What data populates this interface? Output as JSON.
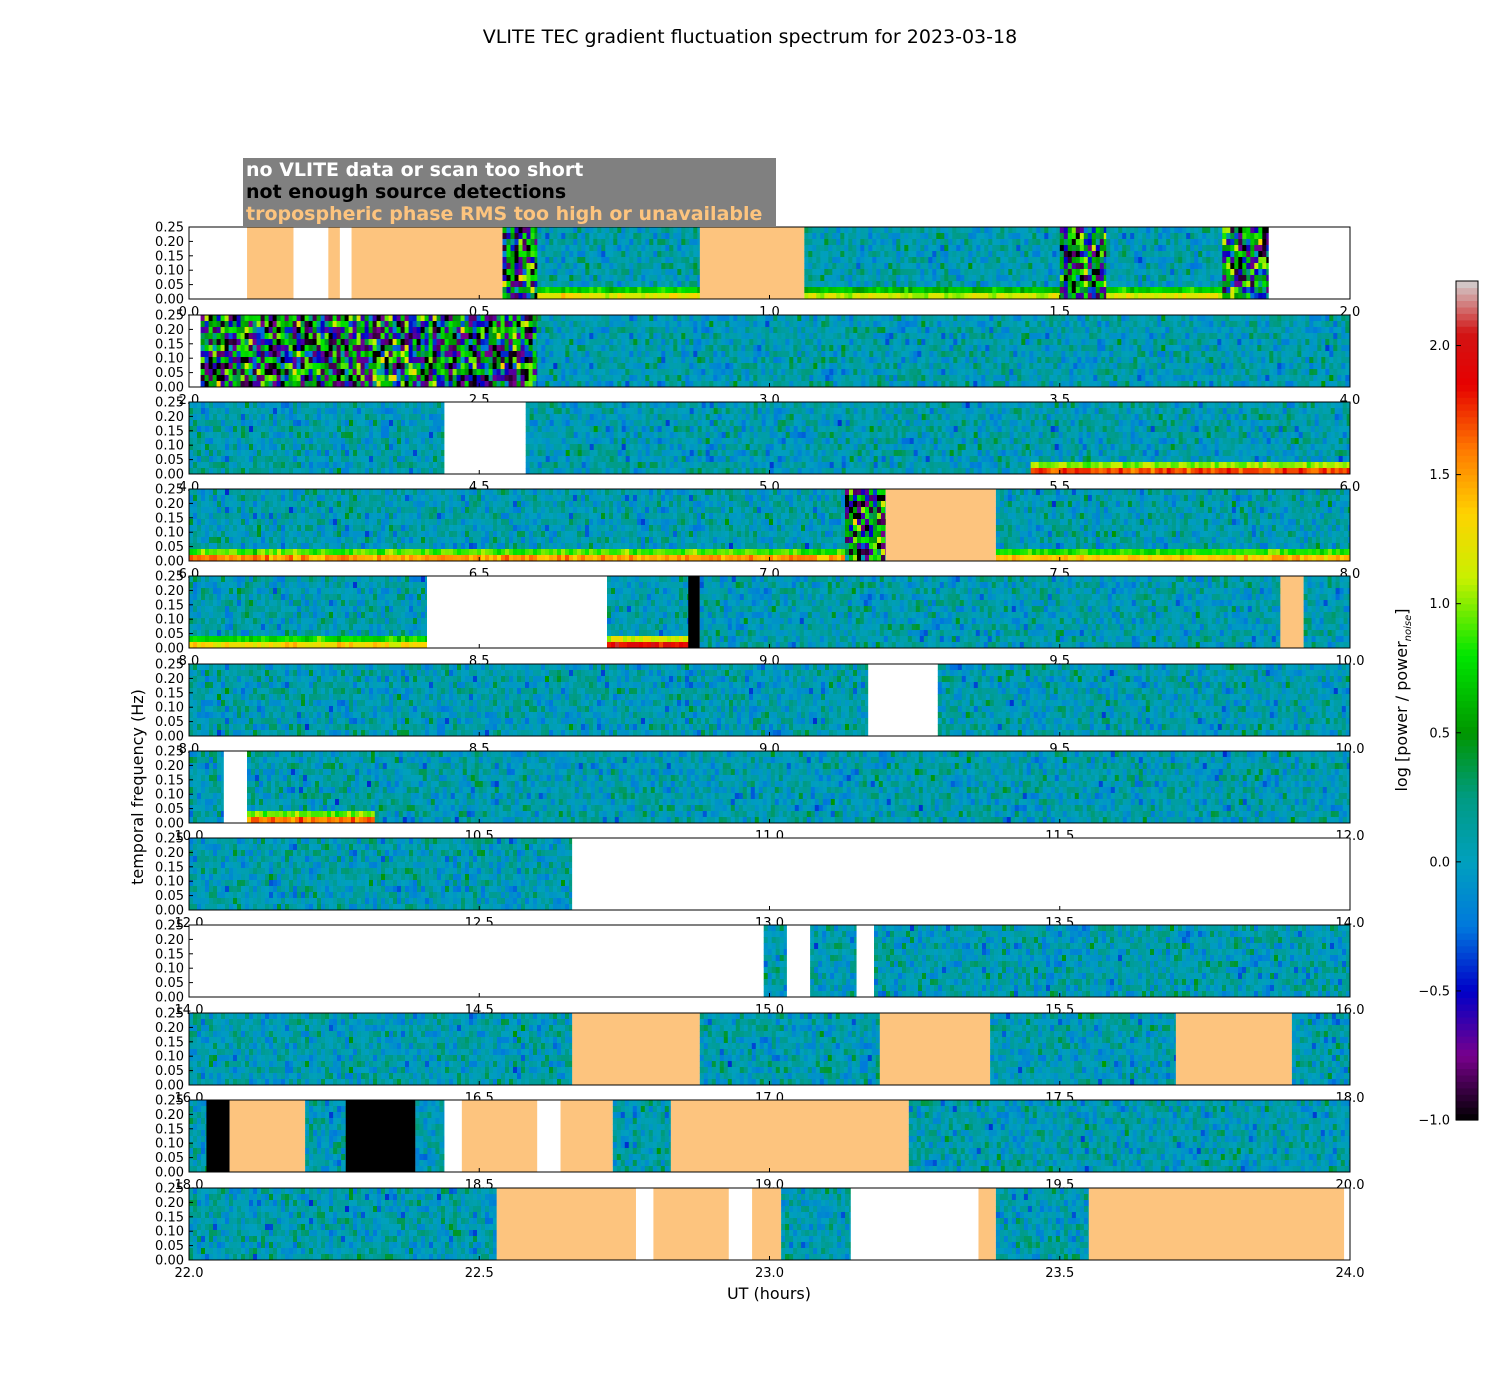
{
  "title": "VLITE TEC gradient fluctuation spectrum for 2023-03-18",
  "legend_box": {
    "lines": [
      {
        "text": "no VLITE data or scan too short",
        "color": "#ffffff"
      },
      {
        "text": "not enough source detections",
        "color": "#000000"
      },
      {
        "text": "tropospheric phase RMS too high or unavailable",
        "color": "#fdc47e"
      }
    ],
    "background": "#808080"
  },
  "colors": {
    "no_data": "#ffffff",
    "too_few_detections": "#000000",
    "tropo_rms_high": "#fdc47e"
  },
  "chart_data": {
    "type": "heatmap",
    "title": "VLITE TEC gradient fluctuation spectrum for 2023-03-18",
    "xlabel": "UT (hours)",
    "ylabel": "temporal frequency (Hz)",
    "ylim": [
      0,
      0.25
    ],
    "yticks": [
      "0.00",
      "0.05",
      "0.10",
      "0.15",
      "0.20",
      "0.25"
    ],
    "colorbar": {
      "label": "log [power / power",
      "label_sub": "noise",
      "label_end": "]",
      "range": [
        -1.0,
        2.25
      ],
      "ticks": [
        "−1.0",
        "−0.5",
        "0.0",
        "0.5",
        "1.0",
        "1.5",
        "2.0"
      ],
      "tick_values": [
        -1.0,
        -0.5,
        0.0,
        0.5,
        1.0,
        1.5,
        2.0
      ],
      "colormap": "nipy_spectral"
    },
    "rows": [
      {
        "xlim": [
          0.0,
          2.0
        ],
        "xticks": [
          "0.0",
          "0.5",
          "1.0",
          "1.5",
          "2.0"
        ],
        "segments": [
          {
            "start": 0.0,
            "end": 0.1,
            "status": "no_data"
          },
          {
            "start": 0.1,
            "end": 0.18,
            "status": "tropo_rms_high"
          },
          {
            "start": 0.18,
            "end": 0.24,
            "status": "no_data"
          },
          {
            "start": 0.24,
            "end": 0.26,
            "status": "tropo_rms_high"
          },
          {
            "start": 0.26,
            "end": 0.28,
            "status": "no_data"
          },
          {
            "start": 0.28,
            "end": 0.54,
            "status": "tropo_rms_high"
          },
          {
            "start": 0.54,
            "end": 0.6,
            "status": "spectrum",
            "noisy": true
          },
          {
            "start": 0.6,
            "end": 0.88,
            "status": "spectrum",
            "low_freq_power": 1.2
          },
          {
            "start": 0.88,
            "end": 1.06,
            "status": "tropo_rms_high"
          },
          {
            "start": 1.06,
            "end": 1.5,
            "status": "spectrum",
            "low_freq_power": 1.1
          },
          {
            "start": 1.5,
            "end": 1.58,
            "status": "spectrum",
            "noisy": true
          },
          {
            "start": 1.58,
            "end": 1.78,
            "status": "spectrum",
            "low_freq_power": 1.2
          },
          {
            "start": 1.78,
            "end": 1.86,
            "status": "spectrum",
            "noisy": true
          },
          {
            "start": 1.86,
            "end": 1.95,
            "status": "no_data"
          },
          {
            "start": 1.95,
            "end": 2.0,
            "status": "no_data"
          }
        ]
      },
      {
        "xlim": [
          2.0,
          4.0
        ],
        "xticks": [
          "2.0",
          "2.5",
          "3.0",
          "3.5",
          "4.0"
        ],
        "segments": [
          {
            "start": 2.0,
            "end": 2.02,
            "status": "no_data"
          },
          {
            "start": 2.02,
            "end": 2.6,
            "status": "spectrum",
            "noisy": true
          },
          {
            "start": 2.6,
            "end": 4.0,
            "status": "spectrum"
          }
        ]
      },
      {
        "xlim": [
          4.0,
          6.0
        ],
        "xticks": [
          "4.0",
          "4.5",
          "5.0",
          "5.5",
          "6.0"
        ],
        "segments": [
          {
            "start": 4.0,
            "end": 4.44,
            "status": "spectrum"
          },
          {
            "start": 4.44,
            "end": 4.58,
            "status": "no_data"
          },
          {
            "start": 4.58,
            "end": 5.45,
            "status": "spectrum"
          },
          {
            "start": 5.45,
            "end": 6.0,
            "status": "spectrum",
            "low_freq_power": 1.7
          }
        ]
      },
      {
        "xlim": [
          6.0,
          8.0
        ],
        "xticks": [
          "6.0",
          "6.5",
          "7.0",
          "7.5",
          "8.0"
        ],
        "segments": [
          {
            "start": 6.0,
            "end": 7.13,
            "status": "spectrum",
            "low_freq_power": 1.5
          },
          {
            "start": 7.13,
            "end": 7.2,
            "status": "spectrum",
            "noisy": true
          },
          {
            "start": 7.2,
            "end": 7.39,
            "status": "tropo_rms_high"
          },
          {
            "start": 7.39,
            "end": 8.0,
            "status": "spectrum",
            "low_freq_power": 1.4
          }
        ]
      },
      {
        "xlim": [
          8.0,
          10.0
        ],
        "xticks": [
          "8.0",
          "8.5",
          "9.0",
          "9.5",
          "10.0"
        ],
        "segments": [
          {
            "start": 8.0,
            "end": 8.41,
            "status": "spectrum",
            "low_freq_power": 1.3
          },
          {
            "start": 8.41,
            "end": 8.72,
            "status": "no_data"
          },
          {
            "start": 8.72,
            "end": 8.86,
            "status": "spectrum",
            "low_freq_power": 1.9
          },
          {
            "start": 8.86,
            "end": 8.88,
            "status": "too_few_detections"
          },
          {
            "start": 8.88,
            "end": 9.88,
            "status": "spectrum"
          },
          {
            "start": 9.88,
            "end": 9.92,
            "status": "tropo_rms_high"
          },
          {
            "start": 9.92,
            "end": 10.0,
            "status": "spectrum"
          }
        ]
      },
      {
        "xlim": [
          8.0,
          10.0
        ],
        "xticks": [
          "8.0",
          "8.5",
          "9.0",
          "9.5",
          "10.0"
        ],
        "segments": [
          {
            "start": 8.0,
            "end": 9.17,
            "status": "spectrum"
          },
          {
            "start": 9.17,
            "end": 9.29,
            "status": "no_data"
          },
          {
            "start": 9.29,
            "end": 10.0,
            "status": "spectrum"
          }
        ]
      },
      {
        "xlim": [
          10.0,
          12.0
        ],
        "xticks": [
          "10.0",
          "10.5",
          "11.0",
          "11.5",
          "12.0"
        ],
        "segments": [
          {
            "start": 10.0,
            "end": 10.06,
            "status": "spectrum"
          },
          {
            "start": 10.06,
            "end": 10.1,
            "status": "no_data"
          },
          {
            "start": 10.1,
            "end": 10.32,
            "status": "spectrum",
            "low_freq_power": 1.6
          },
          {
            "start": 10.32,
            "end": 12.0,
            "status": "spectrum"
          }
        ]
      },
      {
        "xlim": [
          12.0,
          14.0
        ],
        "xticks": [
          "12.0",
          "12.5",
          "13.0",
          "13.5",
          "14.0"
        ],
        "segments": [
          {
            "start": 12.0,
            "end": 12.66,
            "status": "spectrum"
          },
          {
            "start": 12.66,
            "end": 14.0,
            "status": "no_data"
          }
        ]
      },
      {
        "xlim": [
          14.0,
          16.0
        ],
        "xticks": [
          "14.0",
          "14.5",
          "15.0",
          "15.5",
          "16.0"
        ],
        "segments": [
          {
            "start": 14.0,
            "end": 14.99,
            "status": "no_data"
          },
          {
            "start": 14.99,
            "end": 15.03,
            "status": "spectrum"
          },
          {
            "start": 15.03,
            "end": 15.07,
            "status": "no_data"
          },
          {
            "start": 15.07,
            "end": 15.15,
            "status": "spectrum"
          },
          {
            "start": 15.15,
            "end": 15.18,
            "status": "no_data"
          },
          {
            "start": 15.18,
            "end": 16.0,
            "status": "spectrum"
          }
        ]
      },
      {
        "xlim": [
          16.0,
          18.0
        ],
        "xticks": [
          "16.0",
          "16.5",
          "17.0",
          "17.5",
          "18.0"
        ],
        "segments": [
          {
            "start": 16.0,
            "end": 16.66,
            "status": "spectrum"
          },
          {
            "start": 16.66,
            "end": 16.88,
            "status": "tropo_rms_high"
          },
          {
            "start": 16.88,
            "end": 17.19,
            "status": "spectrum"
          },
          {
            "start": 17.19,
            "end": 17.38,
            "status": "tropo_rms_high"
          },
          {
            "start": 17.38,
            "end": 17.7,
            "status": "spectrum"
          },
          {
            "start": 17.7,
            "end": 17.9,
            "status": "tropo_rms_high"
          },
          {
            "start": 17.9,
            "end": 18.0,
            "status": "spectrum"
          }
        ]
      },
      {
        "xlim": [
          18.0,
          20.0
        ],
        "xticks": [
          "18.0",
          "18.5",
          "19.0",
          "19.5",
          "20.0"
        ],
        "segments": [
          {
            "start": 18.0,
            "end": 18.03,
            "status": "spectrum"
          },
          {
            "start": 18.03,
            "end": 18.07,
            "status": "too_few_detections"
          },
          {
            "start": 18.07,
            "end": 18.2,
            "status": "tropo_rms_high"
          },
          {
            "start": 18.2,
            "end": 18.27,
            "status": "spectrum"
          },
          {
            "start": 18.27,
            "end": 18.39,
            "status": "too_few_detections"
          },
          {
            "start": 18.39,
            "end": 18.44,
            "status": "spectrum"
          },
          {
            "start": 18.44,
            "end": 18.47,
            "status": "no_data"
          },
          {
            "start": 18.47,
            "end": 18.6,
            "status": "tropo_rms_high"
          },
          {
            "start": 18.6,
            "end": 18.64,
            "status": "no_data"
          },
          {
            "start": 18.64,
            "end": 18.73,
            "status": "tropo_rms_high"
          },
          {
            "start": 18.73,
            "end": 18.83,
            "status": "spectrum"
          },
          {
            "start": 18.83,
            "end": 19.24,
            "status": "tropo_rms_high"
          },
          {
            "start": 19.24,
            "end": 20.0,
            "status": "spectrum"
          }
        ]
      },
      {
        "xlim": [
          22.0,
          24.0
        ],
        "xticks": [
          "22.0",
          "22.5",
          "23.0",
          "23.5",
          "24.0"
        ],
        "segments": [
          {
            "start": 22.0,
            "end": 22.53,
            "status": "spectrum"
          },
          {
            "start": 22.53,
            "end": 22.77,
            "status": "tropo_rms_high"
          },
          {
            "start": 22.77,
            "end": 22.8,
            "status": "no_data"
          },
          {
            "start": 22.8,
            "end": 22.93,
            "status": "tropo_rms_high"
          },
          {
            "start": 22.93,
            "end": 22.97,
            "status": "no_data"
          },
          {
            "start": 22.97,
            "end": 23.02,
            "status": "tropo_rms_high"
          },
          {
            "start": 23.02,
            "end": 23.14,
            "status": "spectrum"
          },
          {
            "start": 23.14,
            "end": 23.36,
            "status": "no_data"
          },
          {
            "start": 23.36,
            "end": 23.39,
            "status": "tropo_rms_high"
          },
          {
            "start": 23.39,
            "end": 23.55,
            "status": "spectrum"
          },
          {
            "start": 23.55,
            "end": 23.99,
            "status": "tropo_rms_high"
          },
          {
            "start": 23.99,
            "end": 24.0,
            "status": "no_data"
          }
        ]
      }
    ]
  }
}
